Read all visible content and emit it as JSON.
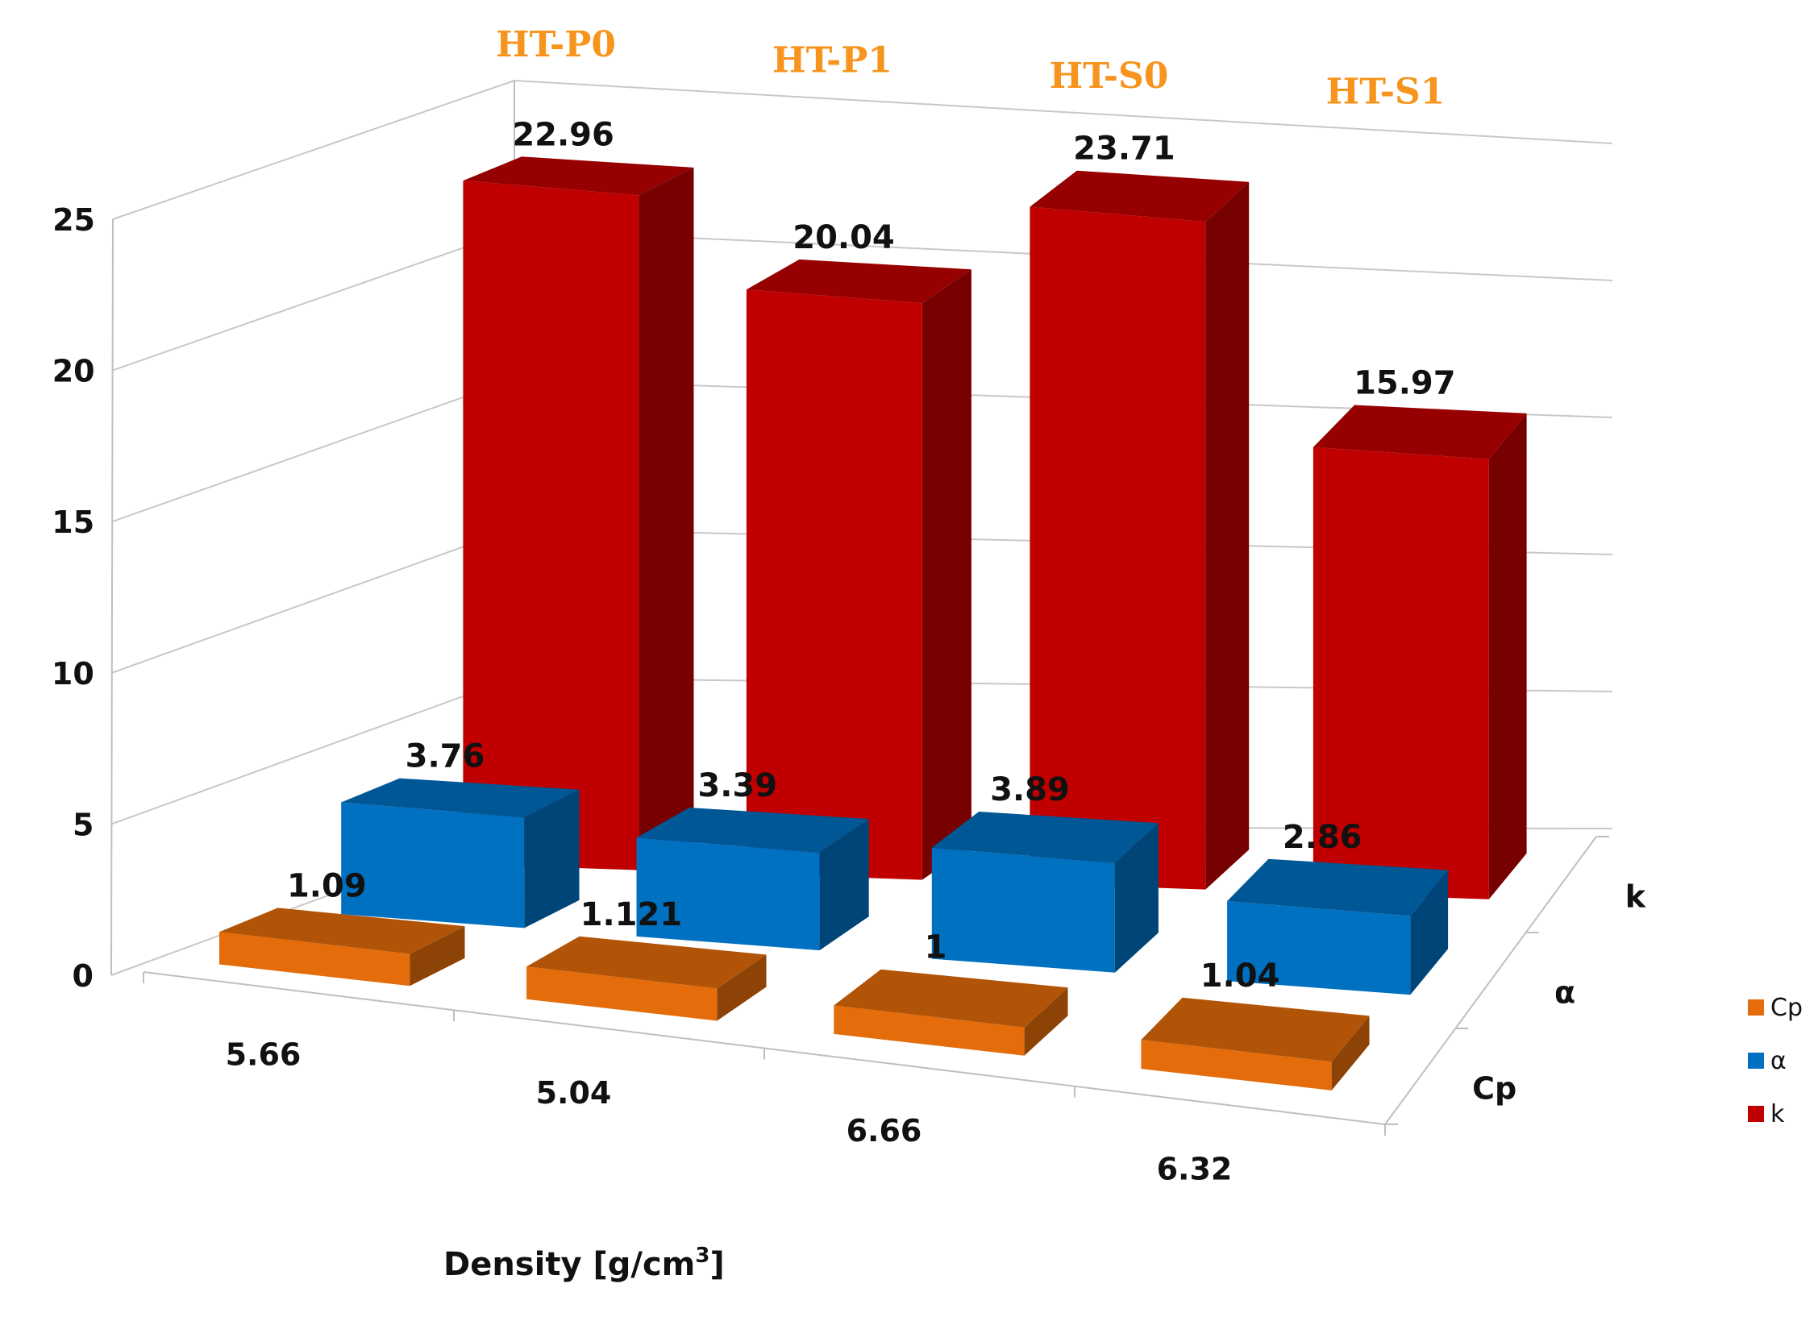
{
  "chart_data": {
    "type": "bar",
    "categories": [
      "HT-P0",
      "HT-P1",
      "HT-S0",
      "HT-S1"
    ],
    "x_tick_labels": [
      "5.66",
      "5.04",
      "6.66",
      "6.32"
    ],
    "xlabel": "Density [g/cm",
    "xlabel_sup": "3",
    "xlabel_end": "]",
    "ylim": [
      0,
      25
    ],
    "y_ticks": [
      0,
      5,
      10,
      15,
      20,
      25
    ],
    "depth_labels": [
      "Cp",
      "α",
      "k"
    ],
    "series": [
      {
        "name": "Cp",
        "color": "#e46c0a",
        "values": [
          1.09,
          1.121,
          1,
          1.04
        ],
        "labels": [
          "1.09",
          "1.121",
          "1",
          "1.04"
        ]
      },
      {
        "name": "α",
        "color": "#0070c0",
        "values": [
          3.76,
          3.39,
          3.89,
          2.86
        ],
        "labels": [
          "3.76",
          "3.39",
          "3.89",
          "2.86"
        ]
      },
      {
        "name": "k",
        "color": "#c00000",
        "values": [
          22.96,
          20.04,
          23.71,
          15.97
        ],
        "labels": [
          "22.96",
          "20.04",
          "23.71",
          "15.97"
        ]
      }
    ],
    "legend": [
      "Cp",
      "α",
      "k"
    ],
    "legend_position": "right",
    "grid": true
  }
}
